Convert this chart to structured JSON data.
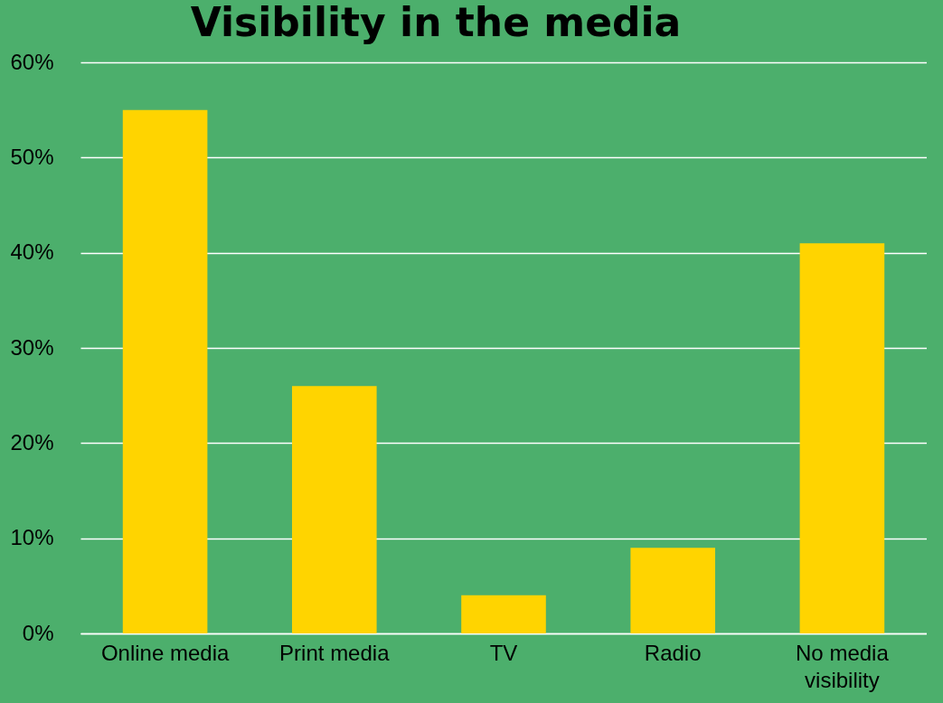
{
  "chart_data": {
    "type": "bar",
    "title": "Visibility in the media",
    "categories": [
      "Online media",
      "Print media",
      "TV",
      "Radio",
      "No media visibility"
    ],
    "values": [
      55,
      26,
      4,
      9,
      41
    ],
    "color": "#ffd400",
    "ylim": [
      0,
      60
    ],
    "yticks": [
      {
        "value": 0,
        "label": "0%"
      },
      {
        "value": 10,
        "label": "10%"
      },
      {
        "value": 20,
        "label": "20%"
      },
      {
        "value": 30,
        "label": "30%"
      },
      {
        "value": 40,
        "label": "40%"
      },
      {
        "value": 50,
        "label": "50%"
      },
      {
        "value": 60,
        "label": "60%"
      }
    ],
    "grid": true
  }
}
